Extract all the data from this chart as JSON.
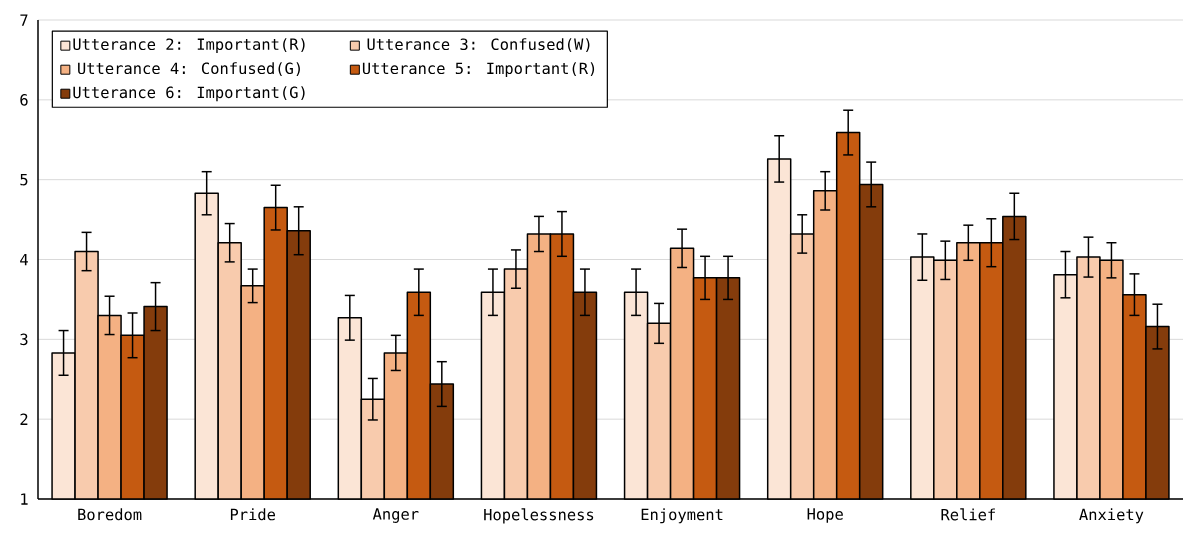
{
  "chart_data": {
    "type": "bar",
    "categories": [
      "Boredom",
      "Pride",
      "Anger",
      "Hopelessness",
      "Enjoyment",
      "Hope",
      "Relief",
      "Anxiety"
    ],
    "series": [
      {
        "name": "Utterance 2: Important(R)",
        "color": "#fbe5d6",
        "values": [
          2.83,
          4.83,
          3.27,
          3.59,
          3.59,
          5.26,
          4.03,
          3.81
        ],
        "errors": [
          0.28,
          0.27,
          0.28,
          0.29,
          0.29,
          0.29,
          0.29,
          0.29
        ]
      },
      {
        "name": "Utterance 3: Confused(W)",
        "color": "#f8cbad",
        "values": [
          4.1,
          4.21,
          2.25,
          3.88,
          3.2,
          4.32,
          3.99,
          4.03
        ],
        "errors": [
          0.24,
          0.24,
          0.26,
          0.24,
          0.25,
          0.24,
          0.24,
          0.25
        ]
      },
      {
        "name": "Utterance 4: Confused(G)",
        "color": "#f4b183",
        "values": [
          3.3,
          3.67,
          2.83,
          4.32,
          4.14,
          4.86,
          4.21,
          3.99
        ],
        "errors": [
          0.24,
          0.21,
          0.22,
          0.22,
          0.24,
          0.24,
          0.22,
          0.22
        ]
      },
      {
        "name": "Utterance 5: Important(R)",
        "color": "#c55a11",
        "values": [
          3.05,
          4.65,
          3.59,
          4.32,
          3.77,
          5.59,
          4.21,
          3.56
        ],
        "errors": [
          0.28,
          0.28,
          0.29,
          0.28,
          0.27,
          0.28,
          0.3,
          0.26
        ]
      },
      {
        "name": "Utterance 6: Important(G)",
        "color": "#843c0c",
        "values": [
          3.41,
          4.36,
          2.44,
          3.59,
          3.77,
          4.94,
          4.54,
          3.16
        ],
        "errors": [
          0.3,
          0.3,
          0.28,
          0.29,
          0.27,
          0.28,
          0.29,
          0.28
        ]
      }
    ],
    "ylim": [
      1,
      7
    ],
    "yticks": [
      1,
      2,
      3,
      4,
      5,
      6,
      7
    ],
    "grid": "y",
    "legend": "top left"
  }
}
